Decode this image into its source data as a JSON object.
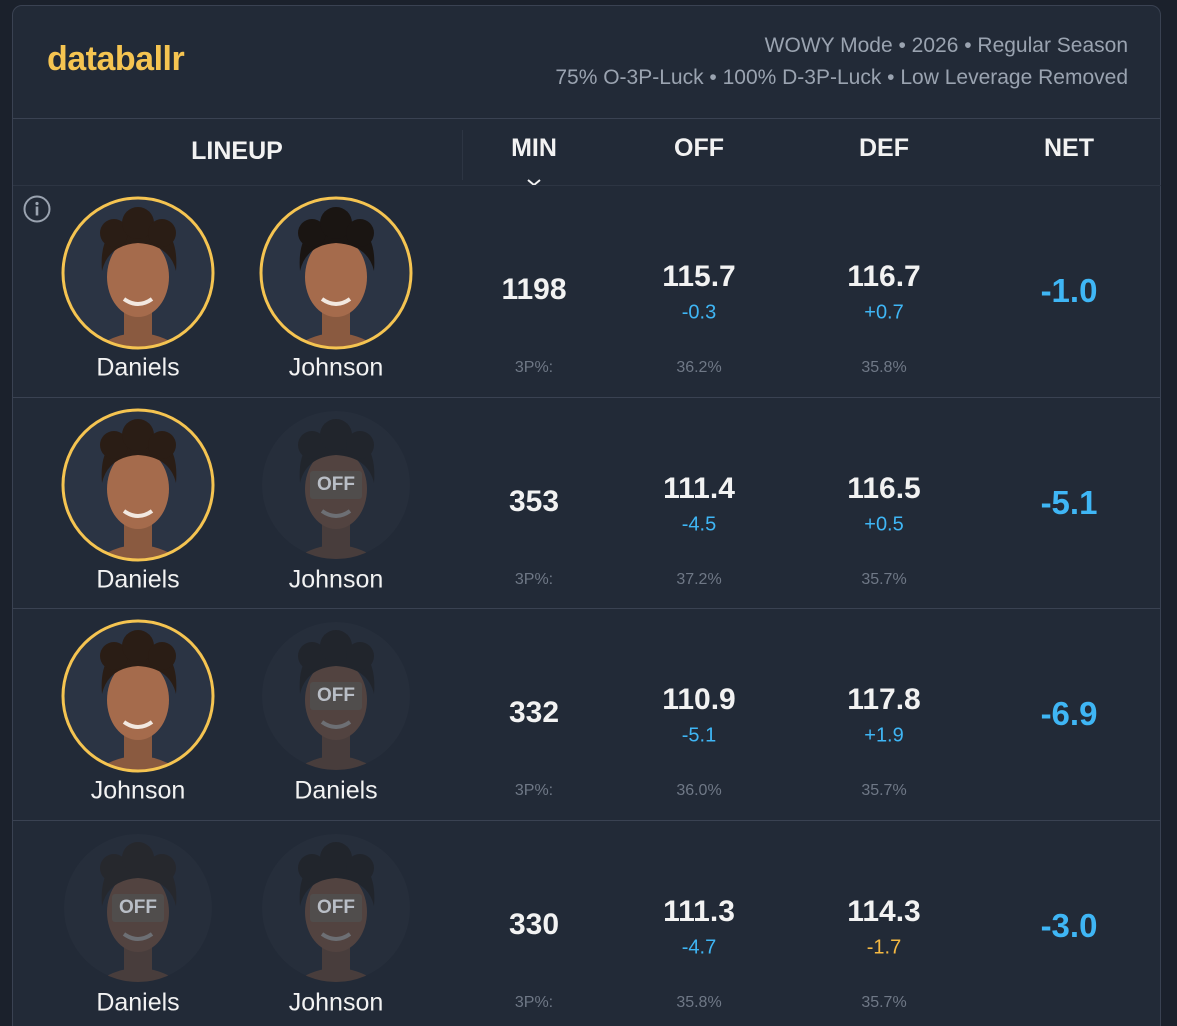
{
  "header": {
    "brand": "databallr",
    "settings": [
      "WOWY Mode • 2026 • Regular Season",
      "75% O-3P-Luck • 100% D-3P-Luck • Low Leverage Removed"
    ]
  },
  "labels": {
    "off": "OFF",
    "three_pt": "3P%:"
  },
  "table": {
    "columns": [
      "LINEUP",
      "MIN",
      "OFF",
      "DEF",
      "NET"
    ],
    "rows": [
      {
        "players": [
          {
            "name": "Daniels",
            "on": true
          },
          {
            "name": "Johnson",
            "on": true
          }
        ],
        "min": "1198",
        "off": "115.7",
        "off_diff": "-0.3",
        "def": "116.7",
        "def_diff": "+0.7",
        "net": "-1.0",
        "off_3p": "36.2%",
        "def_3p": "35.8%"
      },
      {
        "players": [
          {
            "name": "Daniels",
            "on": true
          },
          {
            "name": "Johnson",
            "on": false
          }
        ],
        "min": "353",
        "off": "111.4",
        "off_diff": "-4.5",
        "def": "116.5",
        "def_diff": "+0.5",
        "net": "-5.1",
        "off_3p": "37.2%",
        "def_3p": "35.7%"
      },
      {
        "players": [
          {
            "name": "Johnson",
            "on": true
          },
          {
            "name": "Daniels",
            "on": false
          }
        ],
        "min": "332",
        "off": "110.9",
        "off_diff": "-5.1",
        "def": "117.8",
        "def_diff": "+1.9",
        "net": "-6.9",
        "off_3p": "36.0%",
        "def_3p": "35.7%"
      },
      {
        "players": [
          {
            "name": "Daniels",
            "on": false
          },
          {
            "name": "Johnson",
            "on": false
          }
        ],
        "min": "330",
        "off": "111.3",
        "off_diff": "-4.7",
        "def": "114.3",
        "def_diff": "-1.7",
        "net": "-3.0",
        "off_3p": "35.8%",
        "def_3p": "35.7%"
      }
    ]
  }
}
